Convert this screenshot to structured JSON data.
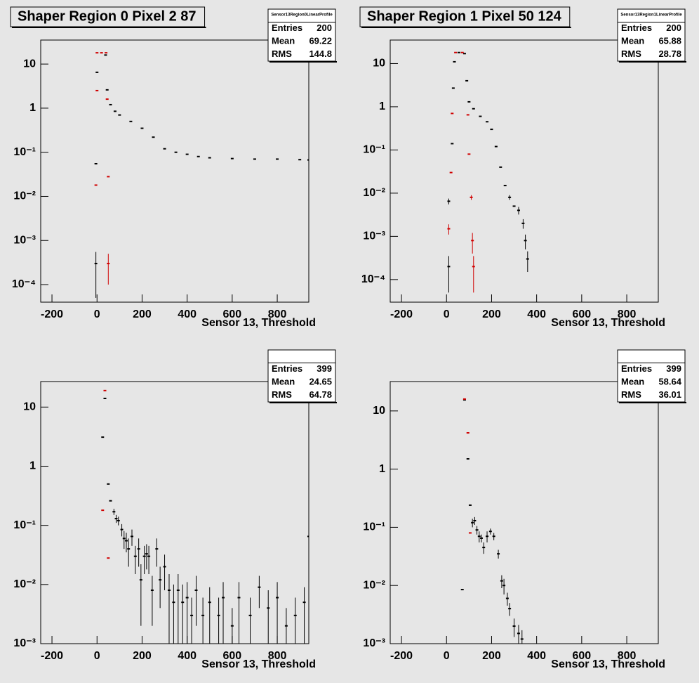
{
  "chart_data": [
    {
      "type": "scatter",
      "title": "Shaper Region 0 Pixel 2 87",
      "stats_header": "Sensor13Region0LinearProfile",
      "stats": [
        {
          "label": "Entries",
          "value": 200
        },
        {
          "label": "Mean",
          "value": 69.22
        },
        {
          "label": "RMS",
          "value": 144.8
        }
      ],
      "x_label": "Sensor 13, Threshold",
      "log_y": true,
      "xlim": [
        -250,
        940
      ],
      "xticks": [
        -200,
        0,
        200,
        400,
        600,
        800
      ],
      "ylim": [
        4e-05,
        35
      ],
      "yticks": [
        {
          "value": 0.0001,
          "label": "10⁻⁴"
        },
        {
          "value": 0.001,
          "label": "10⁻³"
        },
        {
          "value": 0.01,
          "label": "10⁻²"
        },
        {
          "value": 0.1,
          "label": "10⁻¹"
        },
        1,
        10
      ],
      "series": [
        {
          "color": "#000000",
          "x": [
            -5,
            -5,
            0,
            38,
            45,
            60,
            80,
            100,
            150,
            200,
            250,
            300,
            350,
            400,
            450,
            500,
            600,
            700,
            800,
            900,
            940
          ],
          "values": [
            0.055,
            0.0003,
            6.5,
            16,
            2.6,
            1.2,
            0.85,
            0.7,
            0.5,
            0.35,
            0.22,
            0.12,
            0.1,
            0.09,
            0.08,
            0.075,
            0.072,
            0.07,
            0.07,
            0.068,
            0.067
          ],
          "errors": [
            null,
            0.00025,
            null,
            null,
            null,
            null,
            null,
            null,
            null,
            null,
            null,
            null,
            null,
            null,
            null,
            null,
            null,
            null,
            null,
            null,
            null
          ]
        },
        {
          "color": "#d00000",
          "x": [
            0,
            20,
            40,
            0,
            -5,
            45,
            50,
            50
          ],
          "values": [
            18,
            18,
            18,
            2.5,
            0.018,
            1.6,
            0.028,
            0.0003
          ],
          "errors": [
            null,
            null,
            null,
            null,
            null,
            null,
            null,
            0.0002
          ]
        }
      ]
    },
    {
      "type": "scatter",
      "title": "Shaper Region 1 Pixel 50 124",
      "stats_header": "Sensor13Region1LinearProfile",
      "stats": [
        {
          "label": "Entries",
          "value": 200
        },
        {
          "label": "Mean",
          "value": 65.88
        },
        {
          "label": "RMS",
          "value": 28.78
        }
      ],
      "x_label": "Sensor 13, Threshold",
      "log_y": true,
      "xlim": [
        -250,
        940
      ],
      "xticks": [
        -200,
        0,
        200,
        400,
        600,
        800
      ],
      "ylim": [
        3e-05,
        35
      ],
      "yticks": [
        {
          "value": 0.0001,
          "label": "10⁻⁴"
        },
        {
          "value": 0.001,
          "label": "10⁻³"
        },
        {
          "value": 0.01,
          "label": "10⁻²"
        },
        {
          "value": 0.1,
          "label": "10⁻¹"
        },
        1,
        10
      ],
      "series": [
        {
          "color": "#000000",
          "x": [
            10,
            10,
            25,
            30,
            35,
            55,
            80,
            90,
            100,
            120,
            150,
            180,
            200,
            220,
            240,
            260,
            280,
            300,
            320,
            340,
            350,
            360
          ],
          "values": [
            0.0002,
            0.0065,
            0.14,
            2.7,
            11,
            18,
            17,
            4,
            1.3,
            0.9,
            0.6,
            0.45,
            0.3,
            0.12,
            0.04,
            0.015,
            0.008,
            0.005,
            0.004,
            0.002,
            0.0008,
            0.0003
          ],
          "errors": [
            0.00015,
            0.001,
            null,
            null,
            null,
            null,
            null,
            null,
            null,
            null,
            null,
            null,
            null,
            null,
            null,
            null,
            0.001,
            null,
            0.0008,
            0.0005,
            0.0003,
            0.00015
          ]
        },
        {
          "color": "#d00000",
          "x": [
            10,
            20,
            25,
            40,
            70,
            95,
            100,
            110,
            115,
            120
          ],
          "values": [
            0.0015,
            0.03,
            0.7,
            18,
            18,
            0.65,
            0.08,
            0.008,
            0.0008,
            0.0002
          ],
          "errors": [
            0.0004,
            null,
            null,
            null,
            null,
            null,
            null,
            0.001,
            0.0004,
            0.00015
          ]
        }
      ]
    },
    {
      "type": "scatter",
      "stats": [
        {
          "label": "Entries",
          "value": 399
        },
        {
          "label": "Mean",
          "value": 24.65
        },
        {
          "label": "RMS",
          "value": 64.78
        }
      ],
      "x_label": "Sensor 13, Threshold",
      "log_y": true,
      "xlim": [
        -250,
        940
      ],
      "xticks": [
        -200,
        0,
        200,
        400,
        600,
        800
      ],
      "ylim": [
        0.001,
        27
      ],
      "yticks": [
        {
          "value": 0.001,
          "label": "10⁻³"
        },
        {
          "value": 0.01,
          "label": "10⁻²"
        },
        {
          "value": 0.1,
          "label": "10⁻¹"
        },
        1,
        10
      ],
      "series": [
        {
          "color": "#000000",
          "x": [
            25,
            35,
            50,
            60,
            75,
            85,
            95,
            110,
            120,
            130,
            140,
            155,
            170,
            185,
            195,
            210,
            220,
            230,
            245,
            265,
            280,
            300,
            320,
            340,
            360,
            380,
            400,
            420,
            440,
            470,
            500,
            540,
            560,
            600,
            630,
            680,
            720,
            760,
            800,
            840,
            880,
            920,
            940
          ],
          "values": [
            3.1,
            14,
            0.5,
            0.26,
            0.17,
            0.13,
            0.12,
            0.085,
            0.06,
            0.055,
            0.04,
            0.065,
            0.03,
            0.04,
            0.012,
            0.03,
            0.033,
            0.03,
            0.008,
            0.04,
            0.012,
            0.02,
            0.008,
            0.005,
            0.008,
            0.005,
            0.006,
            0.003,
            0.008,
            0.003,
            0.005,
            0.003,
            0.006,
            0.002,
            0.006,
            0.003,
            0.009,
            0.004,
            0.006,
            0.002,
            0.003,
            0.005,
            0.065
          ],
          "errors": [
            null,
            null,
            null,
            null,
            0.02,
            0.02,
            0.02,
            0.02,
            0.02,
            0.02,
            0.02,
            0.02,
            0.015,
            0.02,
            0.01,
            0.015,
            0.015,
            0.015,
            0.006,
            0.02,
            0.008,
            0.012,
            0.007,
            0.005,
            0.007,
            0.005,
            0.005,
            0.003,
            0.006,
            0.003,
            0.004,
            0.003,
            0.005,
            0.002,
            0.005,
            0.003,
            0.005,
            0.004,
            0.005,
            0.002,
            0.003,
            0.004,
            null
          ]
        },
        {
          "color": "#d00000",
          "x": [
            25,
            35,
            50
          ],
          "values": [
            0.18,
            19,
            0.028
          ],
          "errors": [
            null,
            null,
            null
          ]
        }
      ]
    },
    {
      "type": "scatter",
      "stats": [
        {
          "label": "Entries",
          "value": 399
        },
        {
          "label": "Mean",
          "value": 58.64
        },
        {
          "label": "RMS",
          "value": 36.01
        }
      ],
      "x_label": "Sensor 13, Threshold",
      "log_y": true,
      "xlim": [
        -250,
        940
      ],
      "xticks": [
        -200,
        0,
        200,
        400,
        600,
        800
      ],
      "ylim": [
        0.001,
        32
      ],
      "yticks": [
        {
          "value": 0.001,
          "label": "10⁻³"
        },
        {
          "value": 0.01,
          "label": "10⁻²"
        },
        {
          "value": 0.1,
          "label": "10⁻¹"
        },
        1,
        10
      ],
      "series": [
        {
          "color": "#000000",
          "x": [
            70,
            80,
            95,
            105,
            115,
            125,
            135,
            145,
            155,
            165,
            180,
            195,
            210,
            230,
            245,
            255,
            270,
            280,
            300,
            320,
            335
          ],
          "values": [
            0.0085,
            15.5,
            1.5,
            0.24,
            0.12,
            0.13,
            0.09,
            0.07,
            0.065,
            0.045,
            0.07,
            0.085,
            0.07,
            0.035,
            0.012,
            0.01,
            0.006,
            0.004,
            0.002,
            0.0015,
            0.0012
          ],
          "errors": [
            null,
            null,
            null,
            null,
            0.02,
            0.02,
            0.015,
            0.015,
            0.01,
            0.01,
            0.015,
            0.01,
            0.01,
            0.006,
            0.003,
            0.003,
            0.0015,
            0.001,
            0.0007,
            0.0006,
            0.0005
          ]
        },
        {
          "color": "#d00000",
          "x": [
            80,
            95,
            105
          ],
          "values": [
            16,
            4.2,
            0.08
          ],
          "errors": [
            null,
            null,
            null
          ]
        }
      ]
    }
  ]
}
